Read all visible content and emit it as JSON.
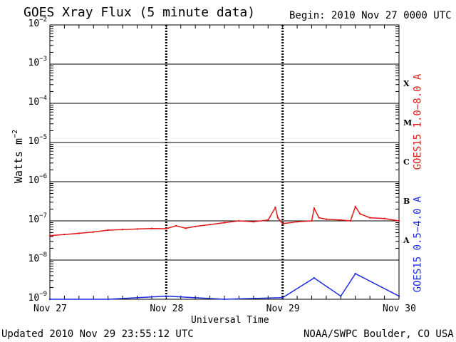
{
  "header": {
    "title": "GOES Xray Flux (5 minute data)",
    "begin": "Begin:  2010 Nov 27 0000 UTC"
  },
  "footer": {
    "updated": "Updated 2010 Nov 29 23:55:12 UTC",
    "credit": "NOAA/SWPC Boulder, CO USA"
  },
  "chart_data": {
    "type": "line",
    "title": "GOES Xray Flux (5 minute data)",
    "xlabel": "Universal Time",
    "ylabel": "Watts m^-2",
    "yscale": "log",
    "ylim": [
      1e-09,
      0.01
    ],
    "ytick_base": "10",
    "yticks": [
      {
        "v": -2,
        "e": "−2"
      },
      {
        "v": -3,
        "e": "−3"
      },
      {
        "v": -4,
        "e": "−4"
      },
      {
        "v": -5,
        "e": "−5"
      },
      {
        "v": -6,
        "e": "−6"
      },
      {
        "v": -7,
        "e": "−7"
      },
      {
        "v": -8,
        "e": "−8"
      },
      {
        "v": -9,
        "e": "−9"
      }
    ],
    "xlim": [
      "2010-11-27T00:00",
      "2010-11-30T00:00"
    ],
    "x_tick_labels": [
      "Nov 27",
      "Nov 28",
      "Nov 29",
      "Nov 30"
    ],
    "flare_classes": [
      {
        "label": "X",
        "value": 0.0001
      },
      {
        "label": "M",
        "value": 1e-05
      },
      {
        "label": "C",
        "value": 1e-06
      },
      {
        "label": "B",
        "value": 1e-07
      },
      {
        "label": "A",
        "value": 1e-08
      }
    ],
    "series": [
      {
        "name": "GOES15 1.0−8.0 A",
        "color": "#e01818",
        "x": [
          "2010-11-27T00:00",
          "2010-11-27T03:00",
          "2010-11-27T06:00",
          "2010-11-27T09:00",
          "2010-11-27T12:00",
          "2010-11-27T15:00",
          "2010-11-27T18:00",
          "2010-11-27T21:00",
          "2010-11-28T00:00",
          "2010-11-28T02:00",
          "2010-11-28T04:00",
          "2010-11-28T06:00",
          "2010-11-28T09:00",
          "2010-11-28T12:00",
          "2010-11-28T15:00",
          "2010-11-28T18:00",
          "2010-11-28T21:00",
          "2010-11-28T22:30",
          "2010-11-28T23:00",
          "2010-11-29T00:00",
          "2010-11-29T03:00",
          "2010-11-29T06:00",
          "2010-11-29T06:30",
          "2010-11-29T07:30",
          "2010-11-29T09:00",
          "2010-11-29T12:00",
          "2010-11-29T14:00",
          "2010-11-29T15:00",
          "2010-11-29T16:00",
          "2010-11-29T18:00",
          "2010-11-29T21:00",
          "2010-11-30T00:00"
        ],
        "values": [
          4.2e-08,
          4.5e-08,
          4.8e-08,
          5.2e-08,
          5.8e-08,
          6e-08,
          6.2e-08,
          6.4e-08,
          6.3e-08,
          7.5e-08,
          6.5e-08,
          7.2e-08,
          8e-08,
          9e-08,
          1e-07,
          9.5e-08,
          1.05e-07,
          2.2e-07,
          1.2e-07,
          8.5e-08,
          9.5e-08,
          1e-07,
          2.1e-07,
          1.2e-07,
          1.1e-07,
          1.05e-07,
          1e-07,
          2.3e-07,
          1.5e-07,
          1.2e-07,
          1.15e-07,
          1e-07
        ]
      },
      {
        "name": "GOES15 0.5−4.0 A",
        "color": "#1a2adf",
        "x": [
          "2010-11-27T00:00",
          "2010-11-27T12:00",
          "2010-11-28T00:00",
          "2010-11-28T12:00",
          "2010-11-29T00:00",
          "2010-11-29T06:30",
          "2010-11-29T12:00",
          "2010-11-29T15:00",
          "2010-11-30T00:00"
        ],
        "values": [
          1e-09,
          1e-09,
          1.2e-09,
          1e-09,
          1.1e-09,
          3.5e-09,
          1.2e-09,
          4.5e-09,
          1.2e-09
        ]
      }
    ]
  }
}
